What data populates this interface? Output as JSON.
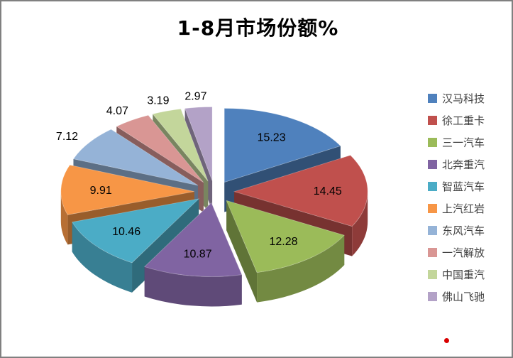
{
  "page": {
    "title": "1-8月市场份额%"
  },
  "chart_data": {
    "type": "pie",
    "style": "3d-exploded",
    "title": "1-8月市场份额%",
    "unit": "%",
    "legend_position": "right",
    "data_labels_mode": "value",
    "categories": [
      "汉马科技",
      "徐工重卡",
      "三一汽车",
      "北奔重汽",
      "智蓝汽车",
      "上汽红岩",
      "东风汽车",
      "一汽解放",
      "中国重汽",
      "佛山飞驰"
    ],
    "values": [
      15.23,
      14.45,
      12.28,
      10.87,
      10.46,
      9.91,
      7.12,
      4.07,
      3.19,
      2.97
    ],
    "data_labels": [
      "15.23",
      "14.45",
      "12.28",
      "10.87",
      "10.46",
      "9.91",
      "7.12",
      "4.07",
      "3.19",
      "2.97"
    ],
    "colors": [
      "#4F81BD",
      "#C0504D",
      "#9BBB59",
      "#8064A2",
      "#4BACC6",
      "#F79646",
      "#95B3D7",
      "#D99694",
      "#C3D69B",
      "#B3A2C7"
    ]
  },
  "ui": {
    "frame_border_color": "#808080",
    "background_color": "#FFFFFF",
    "title_color": "#000000",
    "legend_text_color": "#404040",
    "data_label_color": "#000000",
    "marker_color": "#D90000"
  }
}
